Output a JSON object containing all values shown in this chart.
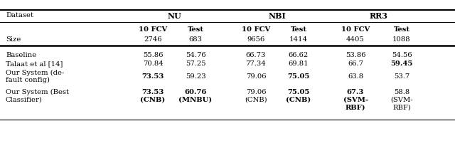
{
  "col_headers_l1_labels": [
    "Dataset",
    "NU",
    "NBI",
    "RR3"
  ],
  "col_headers_l2": [
    "10 FCV",
    "Test",
    "10 FCV",
    "Test",
    "10 FCV",
    "Test"
  ],
  "size_row_label": "Size",
  "size_row_values": [
    "2746",
    "683",
    "9656",
    "1414",
    "4405",
    "1088"
  ],
  "rows": [
    {
      "label": "Baseline",
      "line2": "",
      "values": [
        "55.86",
        "54.76",
        "66.73",
        "66.62",
        "53.86",
        "54.56"
      ],
      "bold": [
        false,
        false,
        false,
        false,
        false,
        false
      ]
    },
    {
      "label": "Talaat et al [14]",
      "line2": "",
      "values": [
        "70.84",
        "57.25",
        "77.34",
        "69.81",
        "66.7",
        "59.45"
      ],
      "bold": [
        false,
        false,
        false,
        false,
        false,
        true
      ]
    },
    {
      "label": "Our System (de-",
      "line2": "fault config)",
      "values": [
        "73.53",
        "59.23",
        "79.06",
        "75.05",
        "63.8",
        "53.7"
      ],
      "bold": [
        true,
        false,
        false,
        true,
        false,
        false
      ]
    },
    {
      "label": "Our System (Best",
      "line2": "Classifier)",
      "val_line1": [
        "73.53",
        "60.76",
        "79.06",
        "75.05",
        "67.3",
        "58.8"
      ],
      "val_line2": [
        "(CNB)",
        "(MNBU)",
        "(CNB)",
        "(CNB)",
        "(SVM-",
        "(SVM-"
      ],
      "val_line3": [
        "",
        "",
        "",
        "",
        "RBF)",
        "RBF)"
      ],
      "bold": [
        true,
        true,
        false,
        true,
        true,
        false
      ]
    }
  ],
  "bg_color": "#ffffff",
  "font_family": "DejaVu Serif",
  "fs_main": 7.2,
  "fs_bold_header": 8.0
}
